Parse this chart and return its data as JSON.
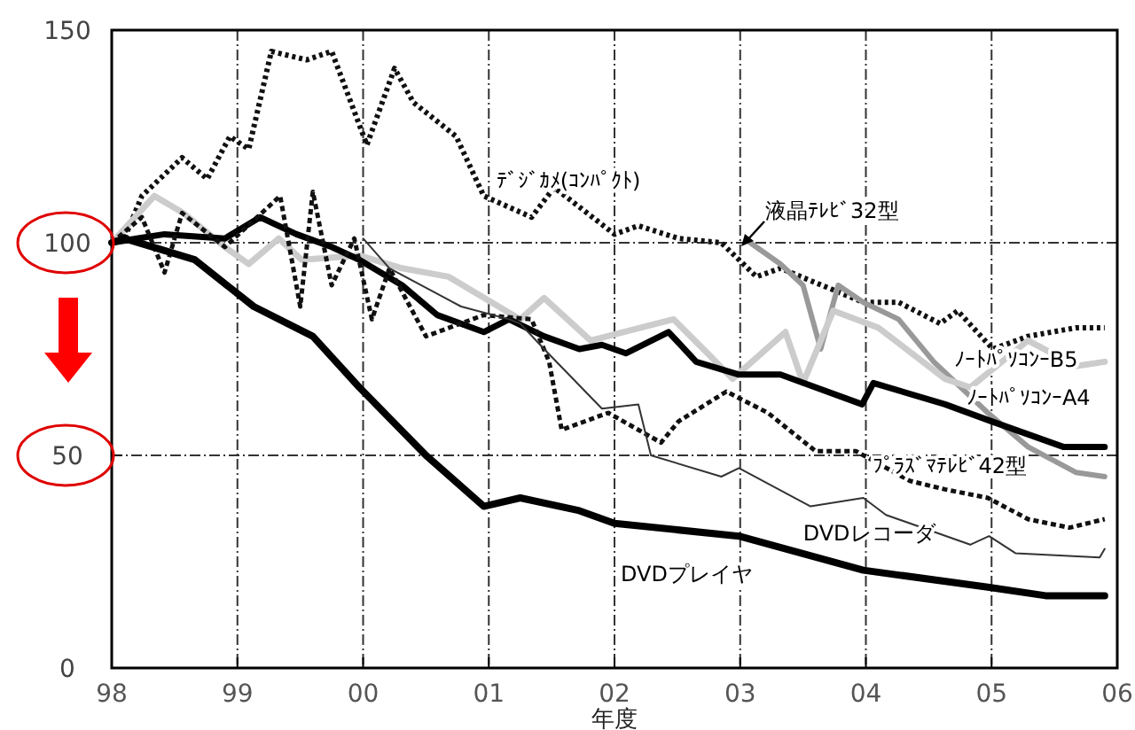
{
  "chart_data": {
    "type": "line",
    "xlabel": "年度",
    "xlim": [
      1998,
      2006
    ],
    "xticks": [
      {
        "value": 1998,
        "label": "98"
      },
      {
        "value": 1999,
        "label": "99"
      },
      {
        "value": 2000,
        "label": "00"
      },
      {
        "value": 2001,
        "label": "01"
      },
      {
        "value": 2002,
        "label": "02"
      },
      {
        "value": 2003,
        "label": "03"
      },
      {
        "value": 2004,
        "label": "04"
      },
      {
        "value": 2005,
        "label": "05"
      },
      {
        "value": 2006,
        "label": "06"
      }
    ],
    "ylim": [
      0,
      150
    ],
    "yticks": [
      0,
      50,
      100,
      150
    ],
    "grid": true,
    "marker": "none",
    "series": [
      {
        "name": "ﾃﾞｼﾞｶﾒ(ｺﾝﾊﾟｸﾄ)",
        "color": "#111111",
        "line_style": "dotted",
        "x": [
          1998,
          1998.1,
          1998.24,
          1998.56,
          1998.76,
          1998.94,
          1999.09,
          1999.27,
          1999.55,
          1999.75,
          2000.03,
          2000.25,
          2000.4,
          2000.74,
          2000.96,
          2001.34,
          2001.52,
          2002.0,
          2002.19,
          2002.51,
          2002.85,
          2003.13,
          2003.32,
          2003.98,
          2004.26,
          2004.59,
          2004.73,
          2005.01,
          2005.29,
          2005.67,
          2005.9
        ],
        "values": [
          100,
          101,
          111,
          120,
          115,
          125,
          122,
          145,
          143,
          145,
          123,
          141,
          133,
          125,
          111,
          106,
          113,
          102,
          104,
          101,
          100,
          92,
          94,
          86,
          86,
          81,
          84,
          75,
          78,
          80,
          80
        ]
      },
      {
        "name": "液晶ﾃﾚﾋﾞ32型",
        "color": "#999999",
        "line_style": "solid",
        "x": [
          2003.08,
          2003.32,
          2003.5,
          2003.64,
          2003.78,
          2003.98,
          2004.26,
          2004.54,
          2004.97,
          2005.29,
          2005.67,
          2005.9
        ],
        "values": [
          100,
          95,
          90,
          75,
          90,
          86,
          82,
          72,
          60,
          52,
          46,
          45
        ]
      },
      {
        "name": "ﾉｰﾄﾊﾟｿｺﾝｰB5",
        "color": "#cccccc",
        "line_style": "solid",
        "x": [
          1998,
          1998.34,
          1998.57,
          1998.9,
          1999.09,
          1999.33,
          1999.51,
          1999.97,
          2000.31,
          2000.68,
          2001.25,
          2001.44,
          2001.81,
          2002.47,
          2002.74,
          2002.94,
          2003.36,
          2003.5,
          2003.74,
          2004.1,
          2004.63,
          2004.83,
          2005.29,
          2005.67,
          2005.9
        ],
        "values": [
          100,
          111,
          107,
          99,
          95,
          101,
          96,
          97,
          94,
          92,
          82,
          87,
          77,
          82,
          74,
          68,
          79,
          67,
          84,
          80,
          68,
          66,
          77,
          71,
          72
        ]
      },
      {
        "name": "ﾉｰﾄﾊﾟｿｺﾝｰA4",
        "color": "#000000",
        "line_style": "solid",
        "x": [
          1998,
          1998.2,
          1998.42,
          1998.9,
          1999.18,
          1999.47,
          1999.75,
          1999.97,
          2000.31,
          2000.59,
          2000.96,
          2001.16,
          2001.44,
          2001.72,
          2001.9,
          2002.09,
          2002.43,
          2002.65,
          2002.99,
          2003.32,
          2003.97,
          2004.06,
          2004.63,
          2005.0,
          2005.57,
          2005.9
        ],
        "values": [
          100,
          101,
          102,
          101,
          106,
          102,
          99,
          96,
          90,
          83,
          79,
          82,
          78,
          75,
          76,
          74,
          79,
          72,
          69,
          69,
          62,
          67,
          62,
          58,
          52,
          52
        ]
      },
      {
        "name": "ﾌﾟﾗｽﾞﾏﾃﾚﾋﾞ42型",
        "color": "#111111",
        "line_style": "dashed",
        "x": [
          1998,
          1998.24,
          1998.42,
          1998.56,
          1998.9,
          1999.23,
          1999.34,
          1999.5,
          1999.6,
          1999.75,
          1999.93,
          2000.07,
          2000.21,
          2000.5,
          2000.96,
          2001.34,
          2001.48,
          2001.58,
          2001.95,
          2002.37,
          2002.51,
          2002.89,
          2003.22,
          2003.6,
          2003.92,
          2004.35,
          2004.63,
          2004.97,
          2005.29,
          2005.62,
          2005.9
        ],
        "values": [
          100,
          106,
          93,
          107,
          99,
          108,
          111,
          85,
          112,
          90,
          101,
          82,
          94,
          78,
          83,
          82,
          72,
          56,
          60,
          53,
          58,
          65,
          60,
          51,
          51,
          44,
          42,
          40,
          35,
          33,
          35
        ]
      },
      {
        "name": "DVDレコーダ",
        "color": "#333333",
        "line_style": "solid",
        "x": [
          2000.0,
          2000.21,
          2000.78,
          2001.16,
          2001.25,
          2001.44,
          2001.9,
          2002.19,
          2002.29,
          2002.85,
          2002.99,
          2003.56,
          2003.98,
          2004.16,
          2004.83,
          2004.98,
          2005.19,
          2005.86,
          2005.9
        ],
        "values": [
          101,
          94,
          85,
          82,
          81,
          75,
          61,
          62,
          50,
          45,
          47,
          38,
          40,
          36,
          29,
          31,
          27,
          26,
          28
        ]
      },
      {
        "name": "DVDプレイヤ",
        "color": "#000000",
        "line_style": "solid",
        "x": [
          1998,
          1998.1,
          1998.66,
          1999.13,
          1999.6,
          1999.97,
          2000.5,
          2000.96,
          2001.25,
          2001.72,
          2002.0,
          2002.99,
          2003.98,
          2004.97,
          2005.43,
          2005.9
        ],
        "values": [
          100,
          101,
          96,
          85,
          78,
          66,
          50,
          38,
          40,
          37,
          34,
          31,
          23,
          19,
          17,
          17
        ]
      }
    ]
  }
}
